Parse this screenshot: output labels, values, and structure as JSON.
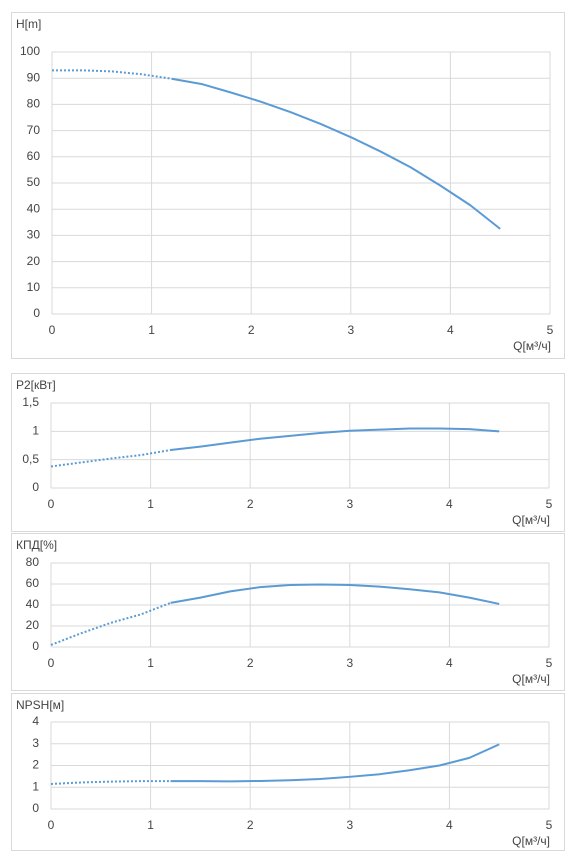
{
  "chart_data": [
    {
      "type": "line",
      "ylabel": "H[m]",
      "xlabel": "Q[м³/ч]",
      "x": [
        0,
        0.3,
        0.6,
        0.9,
        1.2,
        1.5,
        1.8,
        2.1,
        2.4,
        2.7,
        3.0,
        3.3,
        3.6,
        3.9,
        4.2,
        4.5
      ],
      "series": [
        {
          "color": "#5b9bd5",
          "line_style": "dotted",
          "values": [
            93,
            93,
            92.6,
            91.5,
            89.8,
            null,
            null,
            null,
            null,
            null,
            null,
            null,
            null,
            null,
            null,
            null
          ]
        },
        {
          "color": "#5b9bd5",
          "line_style": "solid",
          "values": [
            null,
            null,
            null,
            null,
            89.8,
            87.8,
            84.5,
            81,
            77,
            72.5,
            67.5,
            62,
            56,
            49,
            41.5,
            32.5
          ]
        }
      ],
      "xlim": [
        0,
        5
      ],
      "xticks": [
        0,
        1,
        2,
        3,
        4,
        5
      ],
      "ylim": [
        0,
        100
      ],
      "yticks": [
        0,
        10,
        20,
        30,
        40,
        50,
        60,
        70,
        80,
        90,
        100
      ],
      "grid": true
    },
    {
      "type": "line",
      "ylabel": "P2[кВт]",
      "xlabel": "Q[м³/ч]",
      "x": [
        0,
        0.3,
        0.6,
        0.9,
        1.2,
        1.5,
        1.8,
        2.1,
        2.4,
        2.7,
        3.0,
        3.3,
        3.6,
        3.9,
        4.2,
        4.5
      ],
      "series": [
        {
          "color": "#5b9bd5",
          "line_style": "dotted",
          "values": [
            0.38,
            0.45,
            0.52,
            0.58,
            0.67,
            null,
            null,
            null,
            null,
            null,
            null,
            null,
            null,
            null,
            null,
            null
          ]
        },
        {
          "color": "#5b9bd5",
          "line_style": "solid",
          "values": [
            null,
            null,
            null,
            null,
            0.67,
            0.73,
            0.8,
            0.87,
            0.92,
            0.97,
            1.01,
            1.03,
            1.05,
            1.05,
            1.04,
            1.0
          ]
        }
      ],
      "xlim": [
        0,
        5
      ],
      "xticks": [
        0,
        1,
        2,
        3,
        4,
        5
      ],
      "ylim": [
        0,
        1.5
      ],
      "yticks": [
        0,
        {
          "value": 0.5,
          "label": "0,5"
        },
        1,
        {
          "value": 1.5,
          "label": "1,5"
        }
      ],
      "grid": true
    },
    {
      "type": "line",
      "ylabel": "КПД[%]",
      "xlabel": "Q[м³/ч]",
      "x": [
        0,
        0.3,
        0.6,
        0.9,
        1.2,
        1.5,
        1.8,
        2.1,
        2.4,
        2.7,
        3.0,
        3.3,
        3.6,
        3.9,
        4.2,
        4.5
      ],
      "series": [
        {
          "color": "#5b9bd5",
          "line_style": "dotted",
          "values": [
            2,
            13,
            23,
            31,
            42,
            null,
            null,
            null,
            null,
            null,
            null,
            null,
            null,
            null,
            null,
            null
          ]
        },
        {
          "color": "#5b9bd5",
          "line_style": "solid",
          "values": [
            null,
            null,
            null,
            null,
            42,
            47,
            53,
            57,
            59,
            59.5,
            59,
            57.5,
            55,
            52,
            47,
            41
          ]
        }
      ],
      "xlim": [
        0,
        5
      ],
      "xticks": [
        0,
        1,
        2,
        3,
        4,
        5
      ],
      "ylim": [
        0,
        80
      ],
      "yticks": [
        0,
        20,
        40,
        60,
        80
      ],
      "grid": true
    },
    {
      "type": "line",
      "ylabel": "NPSH[м]",
      "xlabel": "Q[м³/ч]",
      "x": [
        0,
        0.3,
        0.6,
        0.9,
        1.2,
        1.5,
        1.8,
        2.1,
        2.4,
        2.7,
        3.0,
        3.3,
        3.6,
        3.9,
        4.2,
        4.5
      ],
      "series": [
        {
          "color": "#5b9bd5",
          "line_style": "dotted",
          "values": [
            1.15,
            1.22,
            1.26,
            1.28,
            1.28,
            null,
            null,
            null,
            null,
            null,
            null,
            null,
            null,
            null,
            null,
            null
          ]
        },
        {
          "color": "#5b9bd5",
          "line_style": "solid",
          "values": [
            null,
            null,
            null,
            null,
            1.28,
            1.28,
            1.27,
            1.29,
            1.32,
            1.38,
            1.48,
            1.6,
            1.78,
            2.0,
            2.35,
            2.97
          ]
        }
      ],
      "xlim": [
        0,
        5
      ],
      "xticks": [
        0,
        1,
        2,
        3,
        4,
        5
      ],
      "ylim": [
        0,
        4
      ],
      "yticks": [
        0,
        1,
        2,
        3,
        4
      ],
      "grid": true
    }
  ]
}
